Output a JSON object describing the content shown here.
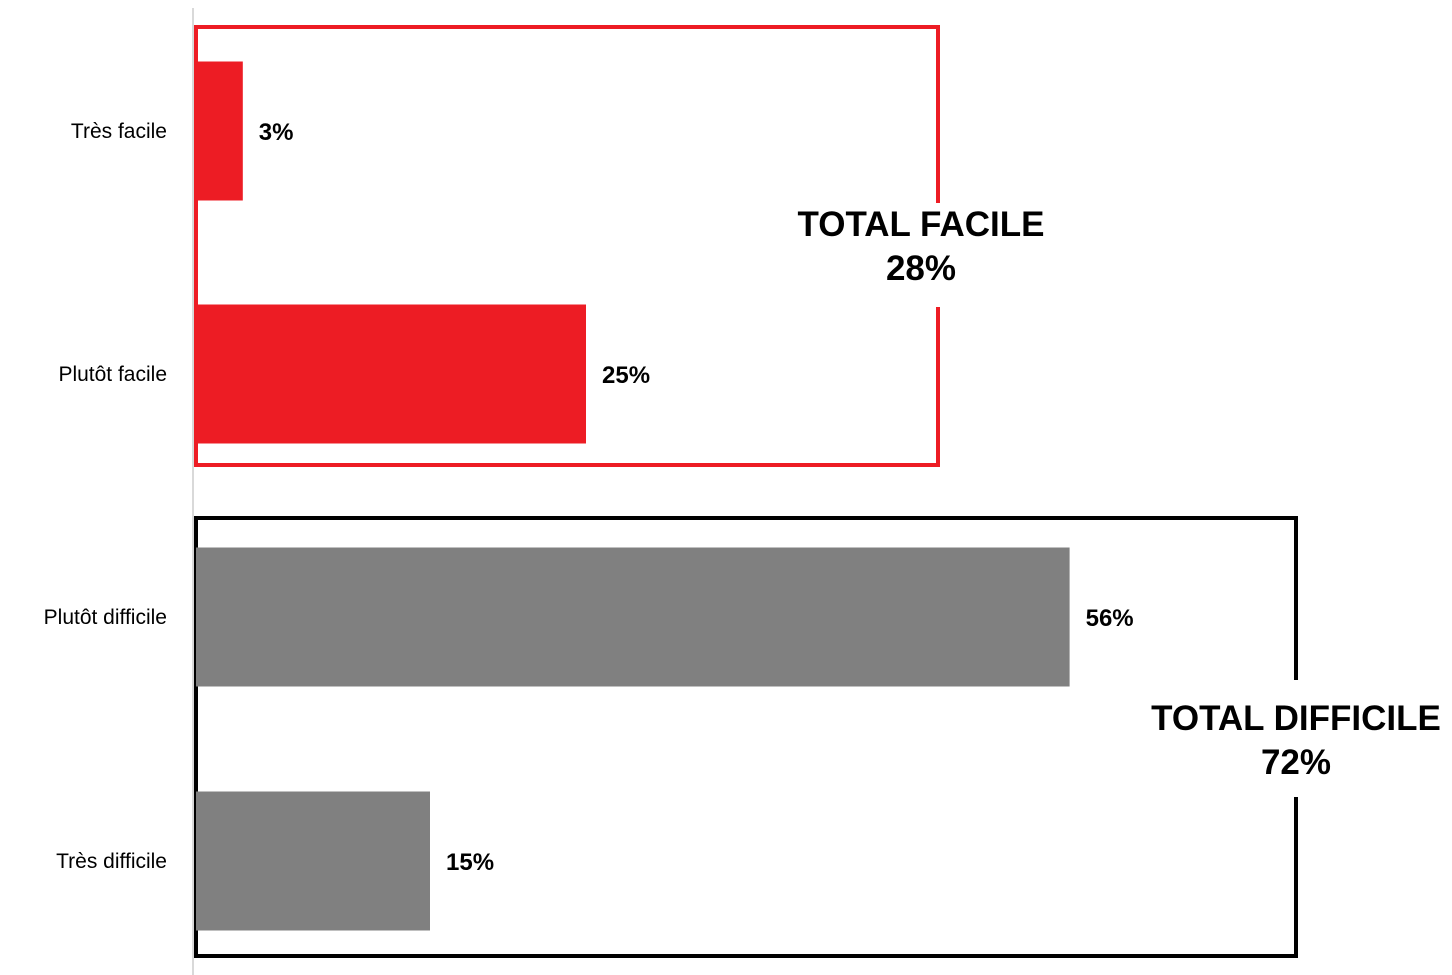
{
  "chart_data": {
    "type": "bar",
    "orientation": "horizontal",
    "categories": [
      "Très facile",
      "Plutôt facile",
      "Plutôt difficile",
      "Très difficile"
    ],
    "values": [
      3,
      25,
      56,
      15
    ],
    "value_labels": [
      "3%",
      "25%",
      "56%",
      "15%"
    ],
    "bar_colors": [
      "#ed1c24",
      "#ed1c24",
      "#808080",
      "#808080"
    ],
    "xlim": [
      0,
      80
    ],
    "grid": false,
    "groups": [
      {
        "title": "TOTAL FACILE",
        "value_label": "28%",
        "value": 28,
        "border_color": "#ed1c24",
        "members": [
          "Très facile",
          "Plutôt facile"
        ]
      },
      {
        "title": "TOTAL DIFFICILE",
        "value_label": "72%",
        "value": 72,
        "border_color": "#000000",
        "members": [
          "Plutôt difficile",
          "Très difficile"
        ]
      }
    ]
  }
}
